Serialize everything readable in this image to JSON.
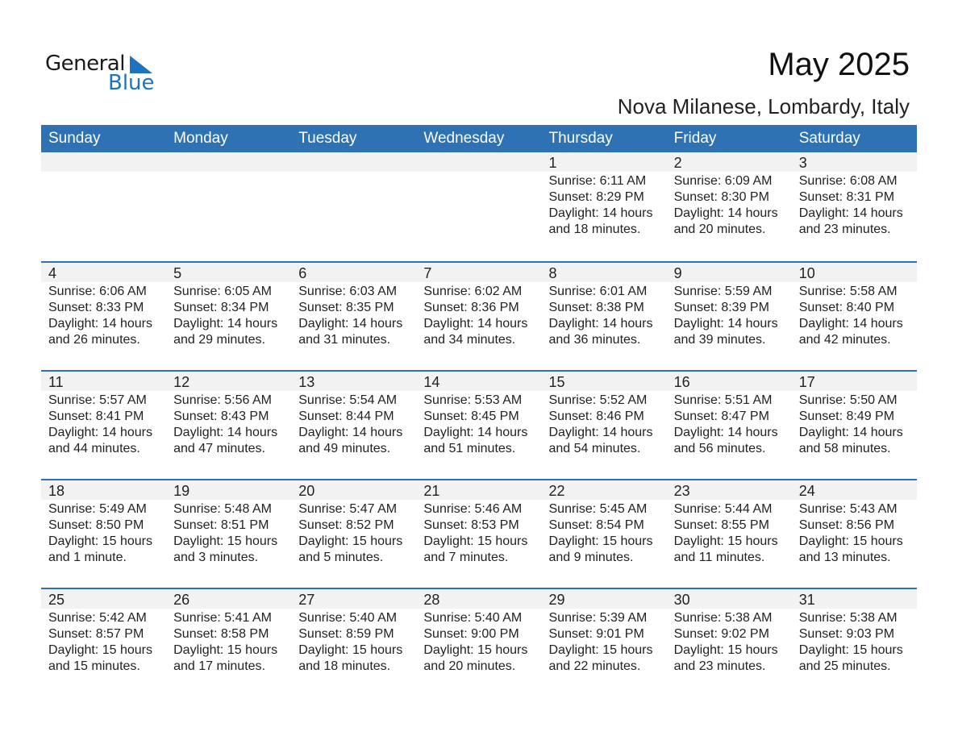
{
  "logo": {
    "general": "General",
    "blue": "Blue"
  },
  "title": "May 2025",
  "location": "Nova Milanese, Lombardy, Italy",
  "weekdays": [
    "Sunday",
    "Monday",
    "Tuesday",
    "Wednesday",
    "Thursday",
    "Friday",
    "Saturday"
  ],
  "weeks": [
    [
      null,
      null,
      null,
      null,
      {
        "day": "1",
        "sunrise": "Sunrise: 6:11 AM",
        "sunset": "Sunset: 8:29 PM",
        "daylight": "Daylight: 14 hours",
        "minutes": "and 18 minutes."
      },
      {
        "day": "2",
        "sunrise": "Sunrise: 6:09 AM",
        "sunset": "Sunset: 8:30 PM",
        "daylight": "Daylight: 14 hours",
        "minutes": "and 20 minutes."
      },
      {
        "day": "3",
        "sunrise": "Sunrise: 6:08 AM",
        "sunset": "Sunset: 8:31 PM",
        "daylight": "Daylight: 14 hours",
        "minutes": "and 23 minutes."
      }
    ],
    [
      {
        "day": "4",
        "sunrise": "Sunrise: 6:06 AM",
        "sunset": "Sunset: 8:33 PM",
        "daylight": "Daylight: 14 hours",
        "minutes": "and 26 minutes."
      },
      {
        "day": "5",
        "sunrise": "Sunrise: 6:05 AM",
        "sunset": "Sunset: 8:34 PM",
        "daylight": "Daylight: 14 hours",
        "minutes": "and 29 minutes."
      },
      {
        "day": "6",
        "sunrise": "Sunrise: 6:03 AM",
        "sunset": "Sunset: 8:35 PM",
        "daylight": "Daylight: 14 hours",
        "minutes": "and 31 minutes."
      },
      {
        "day": "7",
        "sunrise": "Sunrise: 6:02 AM",
        "sunset": "Sunset: 8:36 PM",
        "daylight": "Daylight: 14 hours",
        "minutes": "and 34 minutes."
      },
      {
        "day": "8",
        "sunrise": "Sunrise: 6:01 AM",
        "sunset": "Sunset: 8:38 PM",
        "daylight": "Daylight: 14 hours",
        "minutes": "and 36 minutes."
      },
      {
        "day": "9",
        "sunrise": "Sunrise: 5:59 AM",
        "sunset": "Sunset: 8:39 PM",
        "daylight": "Daylight: 14 hours",
        "minutes": "and 39 minutes."
      },
      {
        "day": "10",
        "sunrise": "Sunrise: 5:58 AM",
        "sunset": "Sunset: 8:40 PM",
        "daylight": "Daylight: 14 hours",
        "minutes": "and 42 minutes."
      }
    ],
    [
      {
        "day": "11",
        "sunrise": "Sunrise: 5:57 AM",
        "sunset": "Sunset: 8:41 PM",
        "daylight": "Daylight: 14 hours",
        "minutes": "and 44 minutes."
      },
      {
        "day": "12",
        "sunrise": "Sunrise: 5:56 AM",
        "sunset": "Sunset: 8:43 PM",
        "daylight": "Daylight: 14 hours",
        "minutes": "and 47 minutes."
      },
      {
        "day": "13",
        "sunrise": "Sunrise: 5:54 AM",
        "sunset": "Sunset: 8:44 PM",
        "daylight": "Daylight: 14 hours",
        "minutes": "and 49 minutes."
      },
      {
        "day": "14",
        "sunrise": "Sunrise: 5:53 AM",
        "sunset": "Sunset: 8:45 PM",
        "daylight": "Daylight: 14 hours",
        "minutes": "and 51 minutes."
      },
      {
        "day": "15",
        "sunrise": "Sunrise: 5:52 AM",
        "sunset": "Sunset: 8:46 PM",
        "daylight": "Daylight: 14 hours",
        "minutes": "and 54 minutes."
      },
      {
        "day": "16",
        "sunrise": "Sunrise: 5:51 AM",
        "sunset": "Sunset: 8:47 PM",
        "daylight": "Daylight: 14 hours",
        "minutes": "and 56 minutes."
      },
      {
        "day": "17",
        "sunrise": "Sunrise: 5:50 AM",
        "sunset": "Sunset: 8:49 PM",
        "daylight": "Daylight: 14 hours",
        "minutes": "and 58 minutes."
      }
    ],
    [
      {
        "day": "18",
        "sunrise": "Sunrise: 5:49 AM",
        "sunset": "Sunset: 8:50 PM",
        "daylight": "Daylight: 15 hours",
        "minutes": "and 1 minute."
      },
      {
        "day": "19",
        "sunrise": "Sunrise: 5:48 AM",
        "sunset": "Sunset: 8:51 PM",
        "daylight": "Daylight: 15 hours",
        "minutes": "and 3 minutes."
      },
      {
        "day": "20",
        "sunrise": "Sunrise: 5:47 AM",
        "sunset": "Sunset: 8:52 PM",
        "daylight": "Daylight: 15 hours",
        "minutes": "and 5 minutes."
      },
      {
        "day": "21",
        "sunrise": "Sunrise: 5:46 AM",
        "sunset": "Sunset: 8:53 PM",
        "daylight": "Daylight: 15 hours",
        "minutes": "and 7 minutes."
      },
      {
        "day": "22",
        "sunrise": "Sunrise: 5:45 AM",
        "sunset": "Sunset: 8:54 PM",
        "daylight": "Daylight: 15 hours",
        "minutes": "and 9 minutes."
      },
      {
        "day": "23",
        "sunrise": "Sunrise: 5:44 AM",
        "sunset": "Sunset: 8:55 PM",
        "daylight": "Daylight: 15 hours",
        "minutes": "and 11 minutes."
      },
      {
        "day": "24",
        "sunrise": "Sunrise: 5:43 AM",
        "sunset": "Sunset: 8:56 PM",
        "daylight": "Daylight: 15 hours",
        "minutes": "and 13 minutes."
      }
    ],
    [
      {
        "day": "25",
        "sunrise": "Sunrise: 5:42 AM",
        "sunset": "Sunset: 8:57 PM",
        "daylight": "Daylight: 15 hours",
        "minutes": "and 15 minutes."
      },
      {
        "day": "26",
        "sunrise": "Sunrise: 5:41 AM",
        "sunset": "Sunset: 8:58 PM",
        "daylight": "Daylight: 15 hours",
        "minutes": "and 17 minutes."
      },
      {
        "day": "27",
        "sunrise": "Sunrise: 5:40 AM",
        "sunset": "Sunset: 8:59 PM",
        "daylight": "Daylight: 15 hours",
        "minutes": "and 18 minutes."
      },
      {
        "day": "28",
        "sunrise": "Sunrise: 5:40 AM",
        "sunset": "Sunset: 9:00 PM",
        "daylight": "Daylight: 15 hours",
        "minutes": "and 20 minutes."
      },
      {
        "day": "29",
        "sunrise": "Sunrise: 5:39 AM",
        "sunset": "Sunset: 9:01 PM",
        "daylight": "Daylight: 15 hours",
        "minutes": "and 22 minutes."
      },
      {
        "day": "30",
        "sunrise": "Sunrise: 5:38 AM",
        "sunset": "Sunset: 9:02 PM",
        "daylight": "Daylight: 15 hours",
        "minutes": "and 23 minutes."
      },
      {
        "day": "31",
        "sunrise": "Sunrise: 5:38 AM",
        "sunset": "Sunset: 9:03 PM",
        "daylight": "Daylight: 15 hours",
        "minutes": "and 25 minutes."
      }
    ]
  ],
  "colors": {
    "header": "#2e72b4",
    "brand": "#1e73be",
    "dayband": "#f2f2f2"
  }
}
